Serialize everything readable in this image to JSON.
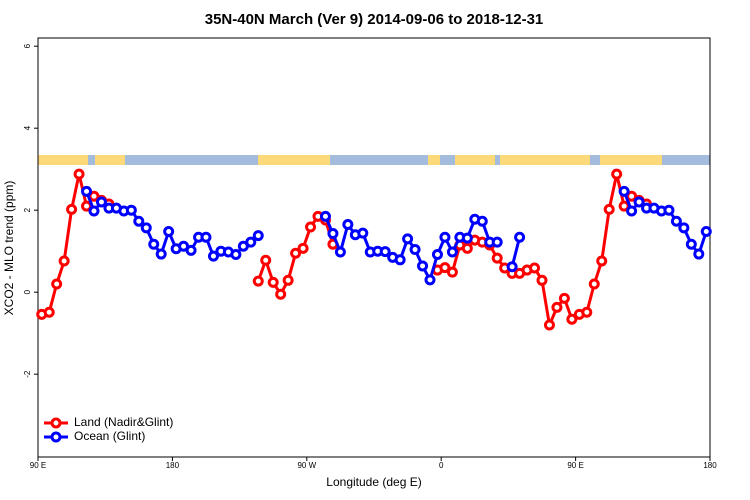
{
  "chart_data": {
    "type": "line",
    "title": "35N-40N March (Ver 9)   2014-09-06 to 2018-12-31",
    "x_label": "Longitude (deg E)",
    "y_label": "XCO2 - MLO trend (ppm)",
    "xlim": [
      90,
      540
    ],
    "ylim": [
      -4.02,
      6.2
    ],
    "xticks": [
      {
        "value": 90,
        "label": "90 E"
      },
      {
        "value": 180,
        "label": "180"
      },
      {
        "value": 270,
        "label": "90 W"
      },
      {
        "value": 360,
        "label": "0"
      },
      {
        "value": 450,
        "label": "90 E"
      },
      {
        "value": 540,
        "label": "180"
      }
    ],
    "yticks": [
      -2,
      0,
      2,
      4,
      6
    ],
    "legend": "bottomleft",
    "series": [
      {
        "name": "Land (Nadir&Glint)",
        "color": "#ff0000",
        "x": [
          92.5,
          97.5,
          102.5,
          107.5,
          112.5,
          117.5,
          122.5,
          127.5,
          132.5,
          137.5,
          142.5,
          237.5,
          242.5,
          247.5,
          252.5,
          257.5,
          262.5,
          267.5,
          272.5,
          277.5,
          282.5,
          287.5,
          292.5,
          357.5,
          362.5,
          367.5,
          372.5,
          377.5,
          382.5,
          387.5,
          392.5,
          397.5,
          402.5,
          407.5,
          412.5,
          417.5,
          422.5,
          427.5,
          432.5,
          437.5,
          442.5,
          447.5,
          452.5,
          457.5,
          462.5,
          467.5,
          472.5,
          477.5,
          482.5,
          487.5,
          492.5,
          497.5
        ],
        "values": [
          -0.54,
          -0.49,
          0.2,
          0.76,
          2.02,
          2.88,
          2.1,
          2.34,
          2.24,
          2.15,
          null,
          0.27,
          0.78,
          0.24,
          -0.05,
          0.29,
          0.95,
          1.07,
          1.59,
          1.85,
          1.76,
          1.17,
          null,
          0.54,
          0.6,
          0.49,
          1.15,
          1.07,
          1.27,
          1.22,
          1.15,
          0.83,
          0.59,
          0.46,
          0.46,
          0.54,
          0.59,
          0.29,
          -0.8,
          -0.37,
          -0.15,
          -0.66,
          -0.54,
          -0.49,
          0.2,
          0.76,
          2.02,
          2.88,
          2.1,
          2.34,
          2.24,
          2.15
        ]
      },
      {
        "name": "Ocean (Glint)",
        "color": "#0000ff",
        "x": [
          122.5,
          127.5,
          132.5,
          137.5,
          142.5,
          147.5,
          152.5,
          157.5,
          162.5,
          167.5,
          172.5,
          177.5,
          182.5,
          187.5,
          192.5,
          197.5,
          202.5,
          207.5,
          212.5,
          217.5,
          222.5,
          227.5,
          232.5,
          237.5,
          242.5,
          282.5,
          287.5,
          292.5,
          297.5,
          302.5,
          307.5,
          312.5,
          317.5,
          322.5,
          327.5,
          332.5,
          337.5,
          342.5,
          347.5,
          352.5,
          357.5,
          362.5,
          367.5,
          372.5,
          377.5,
          382.5,
          387.5,
          392.5,
          397.5,
          402.5,
          407.5,
          412.5,
          417.5,
          482.5,
          487.5,
          492.5,
          497.5,
          502.5,
          507.5,
          512.5,
          517.5,
          522.5,
          527.5,
          532.5,
          537.5
        ],
        "values": [
          2.46,
          1.98,
          2.2,
          2.05,
          2.05,
          1.98,
          2.0,
          1.73,
          1.57,
          1.17,
          0.93,
          1.48,
          1.06,
          1.12,
          1.02,
          1.34,
          1.34,
          0.88,
          1.0,
          0.98,
          0.92,
          1.12,
          1.22,
          1.38,
          null,
          1.85,
          1.43,
          0.98,
          1.65,
          1.4,
          1.44,
          0.98,
          1.0,
          0.99,
          0.85,
          0.79,
          1.3,
          1.04,
          0.64,
          0.3,
          0.92,
          1.34,
          0.98,
          1.34,
          1.32,
          1.78,
          1.73,
          1.22,
          1.22,
          null,
          0.62,
          1.34,
          null,
          2.46,
          1.98,
          2.2,
          2.05,
          2.05,
          1.98,
          2.0,
          1.73,
          1.57,
          1.17,
          0.93,
          1.48
        ]
      }
    ]
  }
}
